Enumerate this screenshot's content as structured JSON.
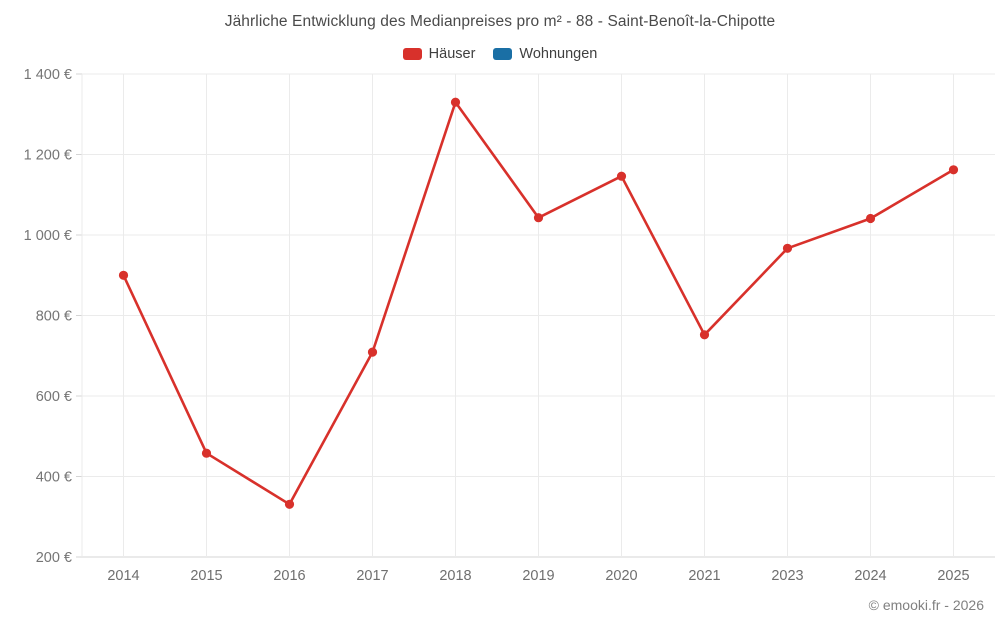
{
  "header": {
    "title": "Jährliche Entwicklung des Medianpreises pro m² - 88 - Saint-Benoît-la-Chipotte"
  },
  "legend": {
    "items": [
      {
        "label": "Häuser",
        "color": "#d8312b"
      },
      {
        "label": "Wohnungen",
        "color": "#1a6fa5"
      }
    ]
  },
  "footer": {
    "credit": "© emooki.fr - 2026"
  },
  "colors": {
    "haeuser": "#d8312b",
    "wohnungen": "#1a6fa5",
    "grid": "#ebebeb",
    "axis": "#d4d4d4",
    "tick_text": "#757575",
    "title_text": "#4a4a4a"
  },
  "chart_data": {
    "type": "line",
    "title": "Jährliche Entwicklung des Medianpreises pro m² - 88 - Saint-Benoît-la-Chipotte",
    "categories": [
      "2014",
      "2015",
      "2016",
      "2017",
      "2018",
      "2019",
      "2020",
      "2021",
      "2023",
      "2024",
      "2025"
    ],
    "series": [
      {
        "name": "Häuser",
        "color": "#d8312b",
        "values": [
          900,
          458,
          331,
          709,
          1330,
          1043,
          1146,
          752,
          967,
          1041,
          1162
        ]
      },
      {
        "name": "Wohnungen",
        "color": "#1a6fa5",
        "values": []
      }
    ],
    "xlabel": "",
    "ylabel": "",
    "ytick_format": "{value} €",
    "ytick_labels": [
      "200 €",
      "400 €",
      "600 €",
      "800 €",
      "1 000 €",
      "1 200 €",
      "1 400 €"
    ],
    "ylim": [
      200,
      1400
    ],
    "ytick_step": 200,
    "grid": true,
    "legend_position": "top",
    "note": "Wohnungen series has no visible data points"
  }
}
